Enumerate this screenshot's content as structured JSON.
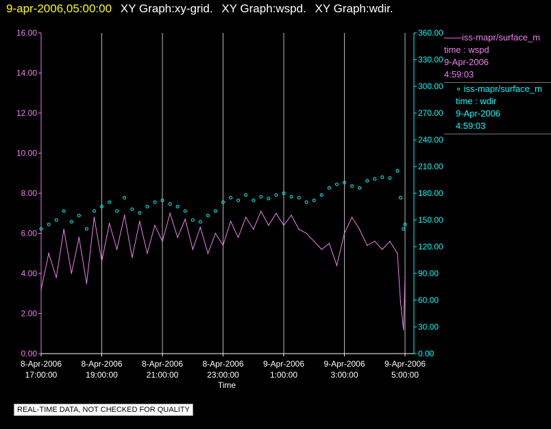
{
  "header": {
    "timestamp": "9-apr-2006,05:00:00",
    "graph_titles": [
      "XY Graph:xy-grid.",
      "XY Graph:wspd.",
      "XY Graph:wdir."
    ]
  },
  "legend": {
    "entries": [
      {
        "series_label": "iss-mapr/surface_m",
        "field": "time : wspd",
        "date": "9-Apr-2006",
        "time": "4:59:03",
        "color": "#ee82ee",
        "marker": "line"
      },
      {
        "series_label": "iss-mapr/surface_m",
        "field": "time : wdir",
        "date": "9-Apr-2006",
        "time": "4:59:03",
        "color": "#00ffff",
        "marker": "circle"
      }
    ]
  },
  "note": "REAL-TIME DATA, NOT CHECKED FOR QUALITY",
  "chart_data": {
    "type": "line",
    "xlabel": "Time",
    "x_range": [
      "8-Apr-2006 17:00:00",
      "9-Apr-2006 05:00:00"
    ],
    "x_ticks": [
      {
        "date": "8-Apr-2006",
        "time": "17:00:00",
        "hours_after_start": 0
      },
      {
        "date": "8-Apr-2006",
        "time": "19:00:00",
        "hours_after_start": 2
      },
      {
        "date": "8-Apr-2006",
        "time": "21:00:00",
        "hours_after_start": 4
      },
      {
        "date": "8-Apr-2006",
        "time": "23:00:00",
        "hours_after_start": 6
      },
      {
        "date": "9-Apr-2006",
        "time": "1:00:00",
        "hours_after_start": 8
      },
      {
        "date": "9-Apr-2006",
        "time": "3:00:00",
        "hours_after_start": 10
      },
      {
        "date": "9-Apr-2006",
        "time": "5:00:00",
        "hours_after_start": 12
      }
    ],
    "y_left": {
      "range": [
        0,
        16
      ],
      "ticks": [
        "0.00",
        "2.00",
        "4.00",
        "6.00",
        "8.00",
        "10.00",
        "12.00",
        "14.00",
        "16.00"
      ],
      "color": "#ee82ee"
    },
    "y_right": {
      "range": [
        0,
        360
      ],
      "ticks": [
        "0.00",
        "30.00",
        "60.00",
        "90.00",
        "120.00",
        "150.00",
        "180.00",
        "210.00",
        "240.00",
        "270.00",
        "300.00",
        "330.00",
        "360.00"
      ],
      "color": "#00ffff"
    },
    "vertical_grid": true,
    "series": [
      {
        "name": "iss-mapr/surface_m time : wspd",
        "axis": "left",
        "style": "line",
        "color": "#ee82ee",
        "points": [
          [
            0.0,
            3.2
          ],
          [
            0.25,
            5.0
          ],
          [
            0.5,
            3.8
          ],
          [
            0.75,
            6.2
          ],
          [
            1.0,
            4.0
          ],
          [
            1.25,
            5.8
          ],
          [
            1.5,
            3.5
          ],
          [
            1.75,
            6.8
          ],
          [
            2.0,
            4.6
          ],
          [
            2.25,
            6.5
          ],
          [
            2.5,
            5.2
          ],
          [
            2.75,
            6.9
          ],
          [
            3.0,
            4.8
          ],
          [
            3.25,
            6.6
          ],
          [
            3.5,
            5.0
          ],
          [
            3.75,
            6.4
          ],
          [
            4.0,
            5.6
          ],
          [
            4.25,
            7.0
          ],
          [
            4.5,
            5.8
          ],
          [
            4.75,
            6.7
          ],
          [
            5.0,
            5.2
          ],
          [
            5.25,
            6.3
          ],
          [
            5.5,
            5.0
          ],
          [
            5.75,
            6.0
          ],
          [
            6.0,
            5.4
          ],
          [
            6.25,
            6.6
          ],
          [
            6.5,
            5.8
          ],
          [
            6.75,
            6.8
          ],
          [
            7.0,
            6.2
          ],
          [
            7.25,
            7.1
          ],
          [
            7.5,
            6.4
          ],
          [
            7.75,
            7.0
          ],
          [
            8.0,
            6.4
          ],
          [
            8.25,
            6.9
          ],
          [
            8.5,
            6.2
          ],
          [
            8.75,
            6.0
          ],
          [
            9.0,
            5.6
          ],
          [
            9.25,
            5.2
          ],
          [
            9.5,
            5.5
          ],
          [
            9.75,
            4.4
          ],
          [
            10.0,
            6.0
          ],
          [
            10.25,
            6.8
          ],
          [
            10.5,
            6.2
          ],
          [
            10.75,
            5.4
          ],
          [
            11.0,
            5.6
          ],
          [
            11.25,
            5.2
          ],
          [
            11.5,
            5.6
          ],
          [
            11.75,
            5.0
          ],
          [
            11.85,
            2.6
          ],
          [
            11.95,
            1.2
          ],
          [
            12.0,
            3.8
          ]
        ]
      },
      {
        "name": "iss-mapr/surface_m time : wdir",
        "axis": "right",
        "style": "circle",
        "color": "#00ffff",
        "points": [
          [
            0.0,
            140
          ],
          [
            0.25,
            145
          ],
          [
            0.5,
            150
          ],
          [
            0.75,
            160
          ],
          [
            1.0,
            148
          ],
          [
            1.25,
            155
          ],
          [
            1.5,
            140
          ],
          [
            1.75,
            160
          ],
          [
            2.0,
            165
          ],
          [
            2.25,
            170
          ],
          [
            2.5,
            160
          ],
          [
            2.75,
            175
          ],
          [
            3.0,
            162
          ],
          [
            3.25,
            158
          ],
          [
            3.5,
            165
          ],
          [
            3.75,
            170
          ],
          [
            4.0,
            172
          ],
          [
            4.25,
            168
          ],
          [
            4.5,
            165
          ],
          [
            4.75,
            160
          ],
          [
            5.0,
            150
          ],
          [
            5.25,
            148
          ],
          [
            5.5,
            155
          ],
          [
            5.75,
            160
          ],
          [
            6.0,
            170
          ],
          [
            6.25,
            175
          ],
          [
            6.5,
            172
          ],
          [
            6.75,
            178
          ],
          [
            7.0,
            172
          ],
          [
            7.25,
            176
          ],
          [
            7.5,
            174
          ],
          [
            7.75,
            178
          ],
          [
            8.0,
            180
          ],
          [
            8.25,
            176
          ],
          [
            8.5,
            175
          ],
          [
            8.75,
            170
          ],
          [
            9.0,
            172
          ],
          [
            9.25,
            178
          ],
          [
            9.5,
            186
          ],
          [
            9.75,
            190
          ],
          [
            10.0,
            192
          ],
          [
            10.25,
            188
          ],
          [
            10.5,
            186
          ],
          [
            10.75,
            194
          ],
          [
            11.0,
            196
          ],
          [
            11.25,
            198
          ],
          [
            11.5,
            197
          ],
          [
            11.75,
            205
          ],
          [
            11.85,
            175
          ],
          [
            11.95,
            140
          ],
          [
            12.0,
            145
          ]
        ]
      }
    ]
  }
}
